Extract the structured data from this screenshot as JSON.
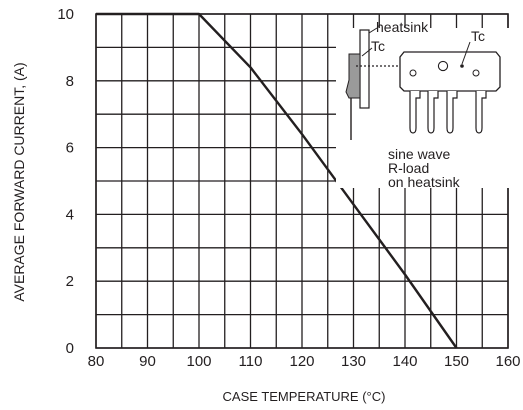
{
  "chart_data": {
    "type": "line",
    "title": "",
    "xlabel": "CASE TEMPERATURE (°C)",
    "ylabel": "AVERAGE FORWARD CURRENT, (A)",
    "xlim": [
      80,
      160
    ],
    "ylim": [
      0,
      10
    ],
    "x_ticks": [
      80,
      90,
      100,
      110,
      120,
      130,
      140,
      150,
      160
    ],
    "y_ticks": [
      0,
      2,
      4,
      6,
      8,
      10
    ],
    "grid": true,
    "series": [
      {
        "x": [
          80,
          100,
          110,
          120,
          130,
          140,
          150
        ],
        "y": [
          10,
          10,
          8.4,
          6.4,
          4.3,
          2.2,
          0
        ]
      }
    ],
    "annotations": {
      "heatsink": "heatsink",
      "tc_left": "Tc",
      "tc_right": "Tc",
      "condition_line1": "sine wave",
      "condition_line2": "R-load",
      "condition_line3": "on heatsink"
    },
    "colors": {
      "line": "#231f20",
      "grid": "#231f20",
      "component": "#9a9a9a"
    }
  }
}
